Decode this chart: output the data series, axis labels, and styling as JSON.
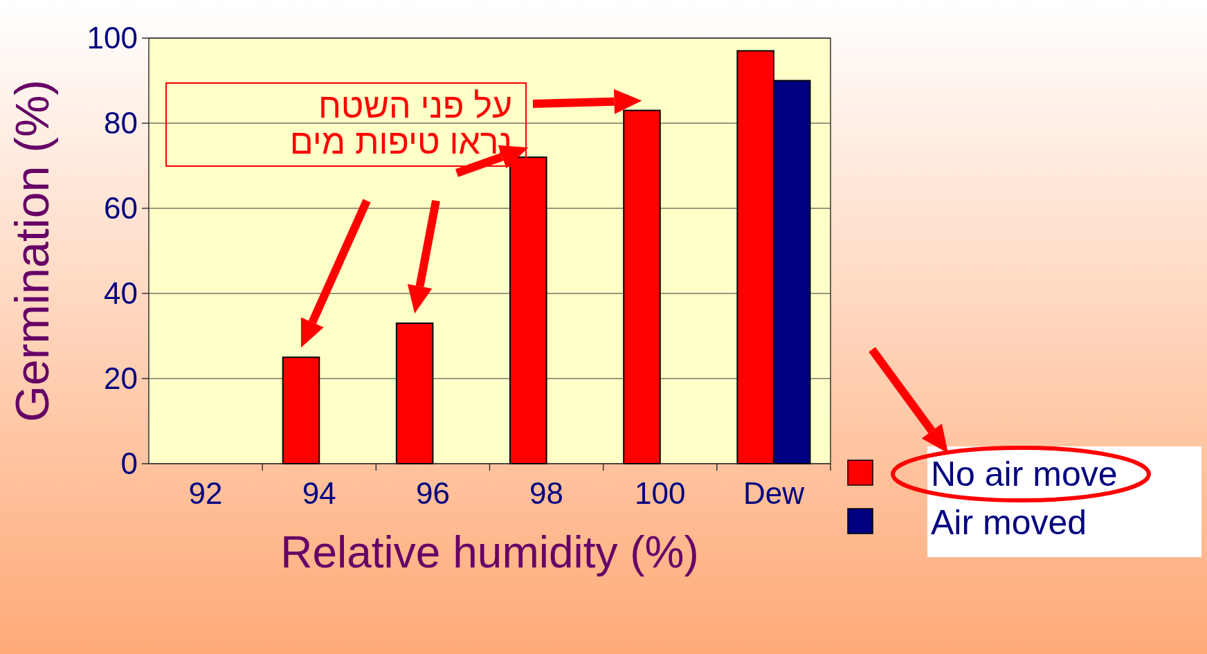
{
  "chart_data": {
    "type": "bar",
    "xlabel": "Relative humidity (%)",
    "ylabel": "Germination (%)",
    "categories": [
      "92",
      "94",
      "96",
      "98",
      "100",
      "Dew"
    ],
    "series": [
      {
        "name": "No air move",
        "color": "#ff0000",
        "values": [
          0,
          25,
          33,
          72,
          83,
          97
        ]
      },
      {
        "name": "Air moved",
        "color": "#000080",
        "values": [
          0,
          0,
          0,
          0,
          0,
          90
        ]
      }
    ],
    "ylim": [
      0,
      100
    ],
    "yticks": [
      0,
      20,
      40,
      60,
      80,
      100
    ],
    "grid": "y",
    "legend": "bottom right",
    "annotations": [
      "על פני השטח\nנראו טיפות מים"
    ]
  }
}
